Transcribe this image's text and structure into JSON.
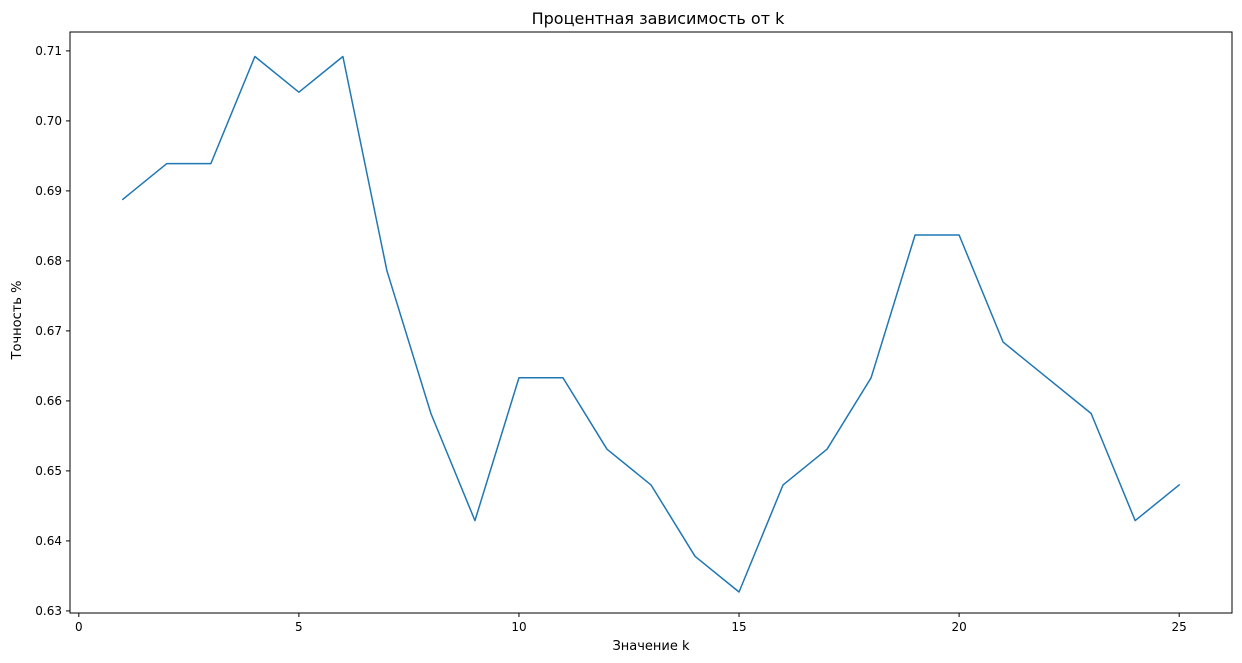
{
  "chart_data": {
    "type": "line",
    "title": "Процентная зависимость от k",
    "xlabel": "Значение k",
    "ylabel": "Точность %",
    "xlim": [
      -0.2,
      26.2
    ],
    "ylim": [
      0.6297,
      0.7127
    ],
    "x_ticks": [
      0,
      5,
      10,
      15,
      20,
      25
    ],
    "x_tick_labels": [
      "0",
      "5",
      "10",
      "15",
      "20",
      "25"
    ],
    "y_ticks": [
      0.63,
      0.64,
      0.65,
      0.66,
      0.67,
      0.68,
      0.69,
      0.7,
      0.71
    ],
    "y_tick_labels": [
      "0.63",
      "0.64",
      "0.65",
      "0.66",
      "0.67",
      "0.68",
      "0.69",
      "0.70",
      "0.71"
    ],
    "grid": false,
    "legend": "none",
    "series": [
      {
        "color": "#1f77b4",
        "x": [
          1,
          2,
          3,
          4,
          5,
          6,
          7,
          8,
          9,
          10,
          11,
          12,
          13,
          14,
          15,
          16,
          17,
          18,
          19,
          20,
          21,
          22,
          23,
          24,
          25
        ],
        "y": [
          0.6888,
          0.6939,
          0.6939,
          0.7092,
          0.7041,
          0.7092,
          0.6786,
          0.6582,
          0.6429,
          0.6633,
          0.6633,
          0.6531,
          0.648,
          0.6378,
          0.6327,
          0.648,
          0.6531,
          0.6633,
          0.6837,
          0.6837,
          0.6684,
          0.6633,
          0.6582,
          0.6429,
          0.648
        ]
      }
    ]
  }
}
